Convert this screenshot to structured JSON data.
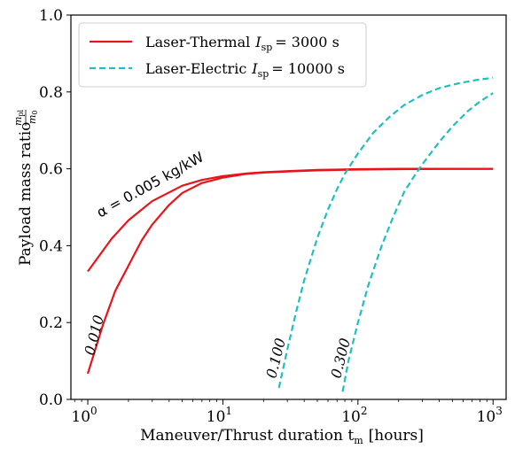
{
  "chart_data": {
    "type": "line",
    "xlabel": "Maneuver/Thrust duration t",
    "xlabel_sub": "m",
    "xlabel_unit": "[hours]",
    "ylabel": "Payload mass ratio",
    "ylabel_frac_num": "m",
    "ylabel_frac_num_sub": "pl",
    "ylabel_frac_den": "m",
    "ylabel_frac_den_sub": "0",
    "x_scale": "log",
    "xlim": [
      0.75,
      1250
    ],
    "ylim": [
      0.0,
      1.0
    ],
    "x_ticks": [
      {
        "value": 1,
        "base": "10",
        "exp": "0"
      },
      {
        "value": 10,
        "base": "10",
        "exp": "1"
      },
      {
        "value": 100,
        "base": "10",
        "exp": "2"
      },
      {
        "value": 1000,
        "base": "10",
        "exp": "3"
      }
    ],
    "y_ticks": [
      "0.0",
      "0.2",
      "0.4",
      "0.6",
      "0.8",
      "1.0"
    ],
    "grid": false,
    "legend_position": "top-left",
    "legend": [
      {
        "label": "Laser-Thermal",
        "isp_symbol": "I",
        "isp_sub": "sp",
        "isp_value": "= 3000 s",
        "color": "#e8141a",
        "dash": "solid"
      },
      {
        "label": "Laser-Electric",
        "isp_symbol": "I",
        "isp_sub": "sp",
        "isp_value": "= 10000 s",
        "color": "#1fbfbf",
        "dash": "dashed"
      }
    ],
    "series": [
      {
        "group": "Laser-Thermal",
        "alpha_label": "α = 0.005 kg/kW",
        "color": "#e8141a",
        "dash": "solid",
        "x": [
          1.0,
          1.5,
          2.0,
          3.0,
          5.0,
          7.0,
          10.0,
          15.0,
          20.0,
          30.0,
          50.0,
          100.0,
          200.0,
          500.0,
          1000.0
        ],
        "y": [
          0.333,
          0.418,
          0.466,
          0.516,
          0.556,
          0.571,
          0.581,
          0.588,
          0.591,
          0.594,
          0.597,
          0.599,
          0.6,
          0.6,
          0.6
        ]
      },
      {
        "group": "Laser-Thermal",
        "alpha_label": "0.010",
        "color": "#e8141a",
        "dash": "solid",
        "x": [
          1.0,
          1.3,
          1.6,
          2.0,
          2.5,
          3.0,
          4.0,
          5.0,
          7.0,
          10.0,
          15.0,
          20.0,
          30.0,
          50.0,
          100.0,
          200.0,
          500.0,
          1000.0
        ],
        "y": [
          0.067,
          0.196,
          0.283,
          0.348,
          0.413,
          0.455,
          0.506,
          0.537,
          0.563,
          0.577,
          0.587,
          0.59,
          0.593,
          0.596,
          0.598,
          0.599,
          0.6,
          0.6
        ]
      },
      {
        "group": "Laser-Electric",
        "alpha_label": "0.100",
        "color": "#1fbfbf",
        "dash": "dashed",
        "x": [
          26.0,
          30.0,
          35.0,
          40.0,
          50.0,
          60.0,
          70.0,
          80.0,
          100.0,
          130.0,
          170.0,
          220.0,
          300.0,
          400.0,
          550.0,
          750.0,
          1000.0
        ],
        "y": [
          0.03,
          0.13,
          0.23,
          0.31,
          0.42,
          0.494,
          0.547,
          0.587,
          0.64,
          0.694,
          0.734,
          0.766,
          0.792,
          0.81,
          0.822,
          0.831,
          0.837
        ]
      },
      {
        "group": "Laser-Electric",
        "alpha_label": "0.300",
        "color": "#1fbfbf",
        "dash": "dashed",
        "x": [
          77.0,
          85.0,
          100.0,
          120.0,
          150.0,
          180.0,
          220.0,
          260.0,
          300.0,
          400.0,
          500.0,
          650.0,
          800.0,
          1000.0
        ],
        "y": [
          0.02,
          0.1,
          0.2,
          0.3,
          0.4,
          0.47,
          0.54,
          0.58,
          0.612,
          0.67,
          0.71,
          0.75,
          0.775,
          0.797
        ]
      }
    ]
  }
}
